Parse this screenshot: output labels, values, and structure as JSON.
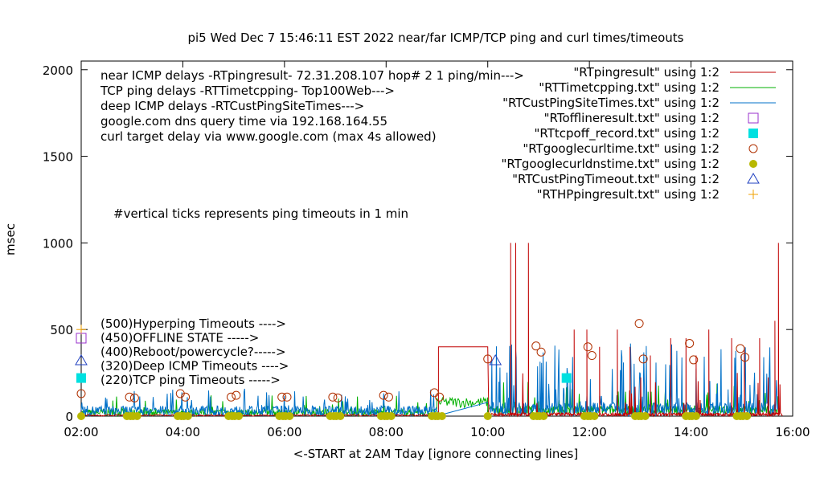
{
  "chart_data": {
    "type": "line",
    "title": "pi5 Wed Dec  7 15:46:11 EST 2022  near/far ICMP/TCP ping and curl times/timeouts",
    "xlabel": "<-START at 2AM Tday [ignore connecting lines]",
    "ylabel": "msec",
    "xlim": [
      2,
      16
    ],
    "ylim": [
      0,
      2050
    ],
    "x_ticks": [
      "02:00",
      "04:00",
      "06:00",
      "08:00",
      "10:00",
      "12:00",
      "14:00",
      "16:00"
    ],
    "y_ticks": [
      "0",
      "500",
      "1000",
      "1500",
      "2000"
    ],
    "grid": false,
    "legend_position": "top-right",
    "info_lines": [
      "near ICMP delays -RTpingresult- 72.31.208.107 hop# 2  1 ping/min--->",
      "TCP ping delays -RTTimetcpping- Top100Web--->",
      "deep ICMP delays -RTCustPingSiteTimes--->",
      "google.com dns query time via 192.168.164.55",
      "curl target delay via www.google.com (max 4s allowed)"
    ],
    "annotation": "#vertical ticks represents ping timeouts in 1 min",
    "key_lines": [
      {
        "text": "(500)Hyperping Timeouts ---->",
        "y": 500
      },
      {
        "text": "(450)OFFLINE STATE ----->",
        "y": 450
      },
      {
        "text": "(400)Reboot/powercycle?----->",
        "y": 400
      },
      {
        "text": "(320)Deep ICMP Timeouts ---->",
        "y": 320
      },
      {
        "text": "(220)TCP ping Timeouts ----->",
        "y": 220
      }
    ],
    "series": [
      {
        "name": "\"RTpingresult\" using 1:2",
        "style": "line",
        "color": "#c00000"
      },
      {
        "name": "\"RTTimetcpping.txt\" using 1:2",
        "style": "line",
        "color": "#00b000"
      },
      {
        "name": "\"RTCustPingSiteTimes.txt\" using 1:2",
        "style": "line",
        "color": "#0070c8"
      },
      {
        "name": "\"RTofflineresult.txt\" using 1:2",
        "style": "open-square",
        "color": "#9932cc"
      },
      {
        "name": "\"RTtcpoff_record.txt\" using 1:2",
        "style": "filled-square",
        "color": "#00e0e0"
      },
      {
        "name": "\"RTgooglecurltime.txt\" using 1:2",
        "style": "open-circle",
        "color": "#b03000"
      },
      {
        "name": "\"RTgooglecurldnstime.txt\" using 1:2",
        "style": "filled-circle",
        "color": "#b8b800"
      },
      {
        "name": "\"RTCustPingTimeout.txt\" using 1:2",
        "style": "open-triangle",
        "color": "#2040c0"
      },
      {
        "name": "\"RTHPpingresult.txt\" using 1:2",
        "style": "plus",
        "color": "#f0a000"
      }
    ],
    "curl_points": {
      "x": [
        2.0,
        2.95,
        3.05,
        3.95,
        4.05,
        4.95,
        5.05,
        5.95,
        6.05,
        6.95,
        7.05,
        7.95,
        8.05,
        8.95,
        9.05,
        10.0,
        10.95,
        11.05,
        11.97,
        12.05,
        12.98,
        13.06,
        13.97,
        14.05,
        14.97,
        15.06
      ],
      "y": [
        130,
        110,
        105,
        130,
        110,
        110,
        120,
        110,
        110,
        110,
        105,
        120,
        110,
        135,
        110,
        330,
        405,
        370,
        400,
        350,
        535,
        330,
        420,
        325,
        390,
        340
      ]
    },
    "dns_points": {
      "x": [
        2.0,
        2.9,
        2.97,
        3.02,
        3.1,
        3.9,
        3.97,
        4.02,
        4.1,
        4.9,
        4.97,
        5.02,
        5.1,
        5.9,
        5.97,
        6.02,
        6.1,
        6.9,
        6.97,
        7.02,
        7.1,
        7.9,
        7.97,
        8.02,
        8.1,
        8.9,
        8.97,
        9.02,
        9.1,
        10.0,
        10.9,
        10.97,
        11.02,
        11.1,
        11.9,
        11.97,
        12.02,
        12.1,
        12.9,
        12.97,
        13.02,
        13.1,
        13.9,
        13.97,
        14.02,
        14.1,
        14.9,
        14.97,
        15.02,
        15.1
      ],
      "y": [
        0,
        0,
        0,
        0,
        0,
        0,
        0,
        0,
        0,
        0,
        0,
        0,
        0,
        0,
        0,
        0,
        0,
        0,
        0,
        0,
        0,
        0,
        0,
        0,
        0,
        0,
        0,
        0,
        0,
        0,
        0,
        0,
        0,
        0,
        0,
        0,
        0,
        0,
        0,
        0,
        0,
        0,
        0,
        0,
        0,
        0,
        0,
        0,
        0,
        0
      ]
    },
    "offline_points": {
      "x": [
        2.0
      ],
      "y": [
        450
      ]
    },
    "tcp_timeout_points": {
      "x": [
        2.0,
        11.55
      ],
      "y": [
        220,
        220
      ]
    },
    "deep_timeout_points": {
      "x": [
        2.0,
        10.15
      ],
      "y": [
        320,
        320
      ]
    },
    "hyperping_points": {
      "x": [
        2.0
      ],
      "y": [
        500
      ]
    },
    "ping_spikes": {
      "x": [
        10.45,
        10.55,
        10.8,
        11.7,
        11.95,
        12.2,
        12.55,
        12.8,
        13.2,
        13.6,
        13.9,
        14.1,
        14.35,
        14.8,
        15.05,
        15.35,
        15.65,
        15.72
      ],
      "y": [
        1000,
        1000,
        1000,
        500,
        500,
        400,
        500,
        400,
        350,
        450,
        450,
        350,
        500,
        450,
        400,
        450,
        550,
        1000
      ]
    },
    "plateau": {
      "x": [
        9.03,
        10.0
      ],
      "y": 400
    }
  }
}
